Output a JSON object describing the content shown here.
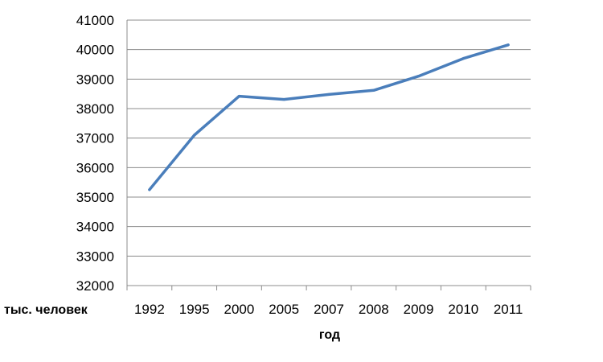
{
  "chart_data": {
    "type": "line",
    "categories": [
      "1992",
      "1995",
      "2000",
      "2005",
      "2007",
      "2008",
      "2009",
      "2010",
      "2011"
    ],
    "series": [
      {
        "values": [
          35250,
          37100,
          38420,
          38310,
          38480,
          38620,
          39100,
          39700,
          40160
        ]
      }
    ],
    "ylabel": "тыс. человек",
    "xlabel": "год",
    "ylim": [
      32000,
      41000
    ],
    "yticks": [
      "32000",
      "33000",
      "34000",
      "35000",
      "36000",
      "37000",
      "38000",
      "39000",
      "40000",
      "41000"
    ],
    "grid": true,
    "legend": "none",
    "line_color": "#4a7ebb",
    "grid_color": "#8c8c8c"
  }
}
